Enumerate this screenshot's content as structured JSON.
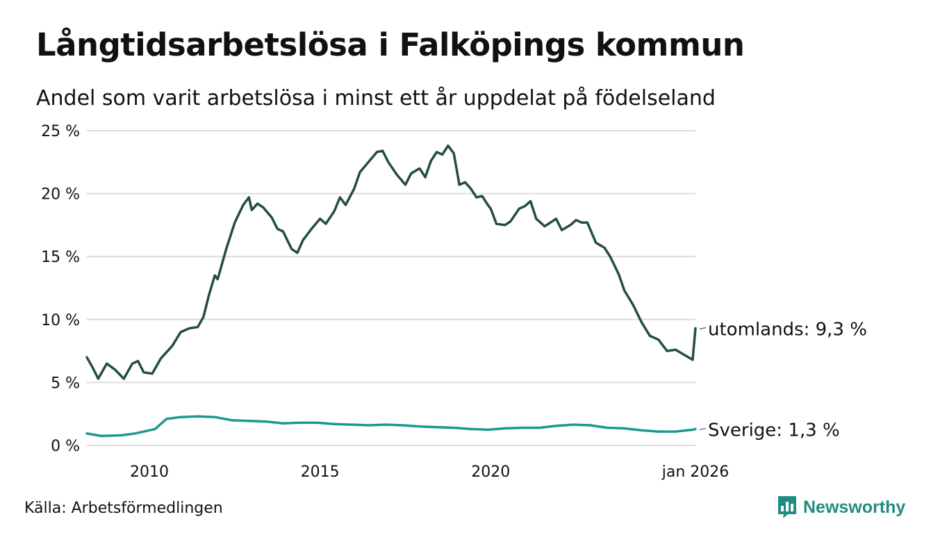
{
  "title": "Långtidsarbetslösa i Falköpings kommun",
  "subtitle": "Andel som varit arbetslösa i minst ett år uppdelat på födelseland",
  "source": "Källa: Arbetsförmedlingen",
  "brand": "Newsworthy",
  "brand_icon": "newsworthy-logo-icon",
  "colors": {
    "utomlands": "#234d43",
    "sverige": "#1a9a8c",
    "grid": "#dcdce0",
    "brand": "#1f8d82"
  },
  "chart_data": {
    "type": "line",
    "title": "Långtidsarbetslösa i Falköpings kommun",
    "ylim": [
      0,
      25
    ],
    "y_ticks": [
      "0 %",
      "5 %",
      "10 %",
      "15 %",
      "20 %",
      "25 %"
    ],
    "x_ticks": [
      "2010",
      "2015",
      "2020",
      "jan 2026"
    ],
    "grid": "horizontal",
    "series": [
      {
        "name": "utomlands",
        "end_label": "utomlands: 9,3 %",
        "points": [
          [
            "2008-03",
            7.0
          ],
          [
            "2008-05",
            6.2
          ],
          [
            "2008-07",
            5.3
          ],
          [
            "2008-10",
            6.5
          ],
          [
            "2009-01",
            6.0
          ],
          [
            "2009-04",
            5.3
          ],
          [
            "2009-07",
            6.5
          ],
          [
            "2009-09",
            6.7
          ],
          [
            "2009-11",
            5.8
          ],
          [
            "2010-02",
            5.7
          ],
          [
            "2010-05",
            6.9
          ],
          [
            "2010-09",
            7.9
          ],
          [
            "2010-12",
            9.0
          ],
          [
            "2011-03",
            9.3
          ],
          [
            "2011-06",
            9.4
          ],
          [
            "2011-08",
            10.2
          ],
          [
            "2011-10",
            12.0
          ],
          [
            "2011-12",
            13.5
          ],
          [
            "2012-01",
            13.2
          ],
          [
            "2012-04",
            15.6
          ],
          [
            "2012-07",
            17.7
          ],
          [
            "2012-10",
            19.1
          ],
          [
            "2012-12",
            19.7
          ],
          [
            "2013-01",
            18.7
          ],
          [
            "2013-03",
            19.2
          ],
          [
            "2013-05",
            18.9
          ],
          [
            "2013-08",
            18.1
          ],
          [
            "2013-10",
            17.2
          ],
          [
            "2013-12",
            17.0
          ],
          [
            "2014-03",
            15.6
          ],
          [
            "2014-05",
            15.3
          ],
          [
            "2014-07",
            16.3
          ],
          [
            "2014-10",
            17.2
          ],
          [
            "2015-01",
            18.0
          ],
          [
            "2015-03",
            17.6
          ],
          [
            "2015-06",
            18.6
          ],
          [
            "2015-08",
            19.7
          ],
          [
            "2015-10",
            19.1
          ],
          [
            "2016-01",
            20.4
          ],
          [
            "2016-03",
            21.7
          ],
          [
            "2016-06",
            22.5
          ],
          [
            "2016-09",
            23.3
          ],
          [
            "2016-11",
            23.4
          ],
          [
            "2017-01",
            22.5
          ],
          [
            "2017-04",
            21.5
          ],
          [
            "2017-07",
            20.7
          ],
          [
            "2017-09",
            21.6
          ],
          [
            "2017-12",
            22.0
          ],
          [
            "2018-02",
            21.3
          ],
          [
            "2018-04",
            22.6
          ],
          [
            "2018-06",
            23.3
          ],
          [
            "2018-08",
            23.1
          ],
          [
            "2018-10",
            23.8
          ],
          [
            "2018-12",
            23.2
          ],
          [
            "2019-02",
            20.7
          ],
          [
            "2019-04",
            20.9
          ],
          [
            "2019-06",
            20.4
          ],
          [
            "2019-08",
            19.7
          ],
          [
            "2019-10",
            19.8
          ],
          [
            "2019-12",
            19.1
          ],
          [
            "2020-01",
            18.8
          ],
          [
            "2020-03",
            17.6
          ],
          [
            "2020-06",
            17.5
          ],
          [
            "2020-08",
            17.8
          ],
          [
            "2020-11",
            18.8
          ],
          [
            "2021-01",
            19.0
          ],
          [
            "2021-03",
            19.4
          ],
          [
            "2021-05",
            18.0
          ],
          [
            "2021-08",
            17.4
          ],
          [
            "2021-10",
            17.7
          ],
          [
            "2021-12",
            18.0
          ],
          [
            "2022-02",
            17.1
          ],
          [
            "2022-05",
            17.5
          ],
          [
            "2022-07",
            17.9
          ],
          [
            "2022-09",
            17.7
          ],
          [
            "2022-11",
            17.7
          ],
          [
            "2023-02",
            16.1
          ],
          [
            "2023-05",
            15.7
          ],
          [
            "2023-07",
            15.0
          ],
          [
            "2023-10",
            13.6
          ],
          [
            "2023-12",
            12.3
          ],
          [
            "2024-03",
            11.2
          ],
          [
            "2024-06",
            9.8
          ],
          [
            "2024-09",
            8.7
          ],
          [
            "2024-12",
            8.4
          ],
          [
            "2025-03",
            7.5
          ],
          [
            "2025-06",
            7.6
          ],
          [
            "2025-09",
            7.2
          ],
          [
            "2025-12",
            6.8
          ],
          [
            "2026-01",
            9.3
          ]
        ]
      },
      {
        "name": "Sverige",
        "end_label": "Sverige: 1,3 %",
        "points": [
          [
            "2008-03",
            0.95
          ],
          [
            "2008-08",
            0.75
          ],
          [
            "2009-03",
            0.8
          ],
          [
            "2009-08",
            0.95
          ],
          [
            "2010-03",
            1.3
          ],
          [
            "2010-07",
            2.1
          ],
          [
            "2010-12",
            2.25
          ],
          [
            "2011-06",
            2.3
          ],
          [
            "2011-12",
            2.25
          ],
          [
            "2012-06",
            2.0
          ],
          [
            "2012-12",
            1.95
          ],
          [
            "2013-06",
            1.9
          ],
          [
            "2013-12",
            1.75
          ],
          [
            "2014-06",
            1.8
          ],
          [
            "2014-12",
            1.8
          ],
          [
            "2015-06",
            1.7
          ],
          [
            "2015-12",
            1.65
          ],
          [
            "2016-06",
            1.6
          ],
          [
            "2016-12",
            1.65
          ],
          [
            "2017-06",
            1.6
          ],
          [
            "2017-12",
            1.5
          ],
          [
            "2018-06",
            1.45
          ],
          [
            "2018-12",
            1.4
          ],
          [
            "2019-06",
            1.3
          ],
          [
            "2019-12",
            1.25
          ],
          [
            "2020-06",
            1.35
          ],
          [
            "2020-12",
            1.4
          ],
          [
            "2021-06",
            1.4
          ],
          [
            "2021-12",
            1.55
          ],
          [
            "2022-06",
            1.65
          ],
          [
            "2022-12",
            1.6
          ],
          [
            "2023-06",
            1.4
          ],
          [
            "2023-12",
            1.35
          ],
          [
            "2024-06",
            1.2
          ],
          [
            "2024-12",
            1.1
          ],
          [
            "2025-06",
            1.1
          ],
          [
            "2025-12",
            1.25
          ],
          [
            "2026-01",
            1.3
          ]
        ]
      }
    ]
  }
}
